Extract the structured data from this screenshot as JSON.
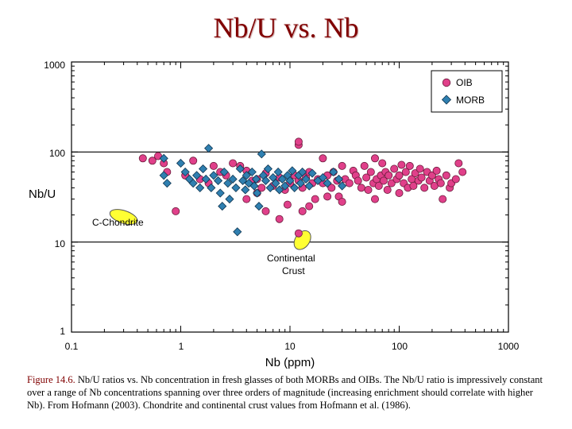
{
  "slide": {
    "title": "Nb/U vs. Nb"
  },
  "caption": {
    "figure_label": "Figure 14.6.",
    "text": " Nb/U ratios vs. Nb concentration in fresh glasses of both MORBs and OIBs. The Nb/U ratio is impressively constant over a range of Nb concentrations spanning over three orders of magnitude (increasing enrichment should correlate with higher Nb). From Hofmann (2003). Chondrite and continental crust values from Hofmann et al. (1986)."
  },
  "chart_data": {
    "type": "scatter",
    "xscale": "log",
    "yscale": "log",
    "xlim": [
      0.1,
      1000
    ],
    "ylim": [
      1,
      1000
    ],
    "xlabel": "Nb (ppm)",
    "ylabel": "Nb/U",
    "x_ticks": [
      0.1,
      1,
      10,
      100,
      1000
    ],
    "x_tick_labels": [
      "0.1",
      "1",
      "10",
      "100",
      "1000"
    ],
    "y_ticks": [
      1,
      10,
      100,
      1000
    ],
    "y_tick_labels": [
      "1",
      "10",
      "100",
      "1000"
    ],
    "reference_lines_y": [
      10,
      100
    ],
    "legend": {
      "position": "top-right",
      "entries": [
        "OIB",
        "MORB"
      ]
    },
    "colors": {
      "OIB": "#e0408a",
      "MORB": "#2f7fb0",
      "reference": "#ffff33"
    },
    "series": [
      {
        "name": "OIB",
        "marker": "circle",
        "points": [
          [
            0.45,
            85
          ],
          [
            0.55,
            80
          ],
          [
            0.62,
            90
          ],
          [
            0.7,
            75
          ],
          [
            0.75,
            60
          ],
          [
            0.9,
            22
          ],
          [
            1.1,
            55
          ],
          [
            1.3,
            80
          ],
          [
            1.5,
            50
          ],
          [
            1.8,
            45
          ],
          [
            2,
            70
          ],
          [
            2.3,
            60
          ],
          [
            2.6,
            55
          ],
          [
            3,
            75
          ],
          [
            3.5,
            70
          ],
          [
            4,
            62
          ],
          [
            4.5,
            48
          ],
          [
            5,
            50
          ],
          [
            5.5,
            40
          ],
          [
            6,
            58
          ],
          [
            7,
            42
          ],
          [
            8,
            52
          ],
          [
            9,
            38
          ],
          [
            10,
            45
          ],
          [
            11,
            55
          ],
          [
            12,
            48
          ],
          [
            12,
            120
          ],
          [
            12,
            130
          ],
          [
            13,
            40
          ],
          [
            14,
            52
          ],
          [
            15,
            60
          ],
          [
            16,
            45
          ],
          [
            17,
            30
          ],
          [
            18,
            50
          ],
          [
            20,
            45
          ],
          [
            20,
            85
          ],
          [
            22,
            55
          ],
          [
            24,
            40
          ],
          [
            25,
            60
          ],
          [
            27,
            48
          ],
          [
            28,
            32
          ],
          [
            30,
            70
          ],
          [
            32,
            50
          ],
          [
            35,
            45
          ],
          [
            38,
            62
          ],
          [
            40,
            55
          ],
          [
            42,
            48
          ],
          [
            45,
            40
          ],
          [
            48,
            70
          ],
          [
            50,
            52
          ],
          [
            52,
            38
          ],
          [
            55,
            60
          ],
          [
            58,
            45
          ],
          [
            60,
            85
          ],
          [
            62,
            50
          ],
          [
            65,
            42
          ],
          [
            68,
            55
          ],
          [
            70,
            75
          ],
          [
            72,
            48
          ],
          [
            75,
            60
          ],
          [
            78,
            38
          ],
          [
            80,
            55
          ],
          [
            85,
            45
          ],
          [
            90,
            65
          ],
          [
            95,
            50
          ],
          [
            100,
            55
          ],
          [
            100,
            35
          ],
          [
            105,
            72
          ],
          [
            110,
            45
          ],
          [
            115,
            60
          ],
          [
            120,
            40
          ],
          [
            125,
            70
          ],
          [
            130,
            50
          ],
          [
            135,
            42
          ],
          [
            140,
            58
          ],
          [
            150,
            48
          ],
          [
            155,
            65
          ],
          [
            160,
            52
          ],
          [
            170,
            40
          ],
          [
            180,
            60
          ],
          [
            190,
            48
          ],
          [
            200,
            55
          ],
          [
            210,
            42
          ],
          [
            220,
            62
          ],
          [
            230,
            50
          ],
          [
            240,
            45
          ],
          [
            250,
            30
          ],
          [
            270,
            55
          ],
          [
            290,
            40
          ],
          [
            300,
            45
          ],
          [
            330,
            50
          ],
          [
            350,
            75
          ],
          [
            380,
            60
          ],
          [
            12,
            12.5
          ],
          [
            6,
            22
          ],
          [
            8,
            18
          ],
          [
            9.5,
            26
          ],
          [
            13,
            22
          ],
          [
            15,
            25
          ],
          [
            22,
            32
          ],
          [
            30,
            28
          ],
          [
            60,
            30
          ],
          [
            5,
            35
          ],
          [
            4,
            30
          ]
        ]
      },
      {
        "name": "MORB",
        "marker": "diamond",
        "points": [
          [
            0.7,
            85
          ],
          [
            0.7,
            55
          ],
          [
            0.75,
            45
          ],
          [
            1,
            75
          ],
          [
            1.1,
            60
          ],
          [
            1.2,
            50
          ],
          [
            1.3,
            45
          ],
          [
            1.4,
            55
          ],
          [
            1.5,
            40
          ],
          [
            1.6,
            65
          ],
          [
            1.7,
            50
          ],
          [
            1.8,
            110
          ],
          [
            1.9,
            40
          ],
          [
            2,
            55
          ],
          [
            2.2,
            48
          ],
          [
            2.3,
            35
          ],
          [
            2.4,
            25
          ],
          [
            2.5,
            60
          ],
          [
            2.7,
            45
          ],
          [
            2.8,
            30
          ],
          [
            3,
            50
          ],
          [
            3.2,
            40
          ],
          [
            3.3,
            13
          ],
          [
            3.5,
            65
          ],
          [
            3.7,
            48
          ],
          [
            3.9,
            38
          ],
          [
            4,
            55
          ],
          [
            4.2,
            45
          ],
          [
            4.5,
            60
          ],
          [
            4.7,
            42
          ],
          [
            4.9,
            50
          ],
          [
            5,
            35
          ],
          [
            5.2,
            25
          ],
          [
            5.5,
            95
          ],
          [
            5.7,
            55
          ],
          [
            6,
            48
          ],
          [
            6.3,
            65
          ],
          [
            6.6,
            40
          ],
          [
            7,
            52
          ],
          [
            7.4,
            45
          ],
          [
            7.8,
            60
          ],
          [
            8,
            38
          ],
          [
            8.5,
            50
          ],
          [
            9,
            42
          ],
          [
            9.5,
            55
          ],
          [
            10,
            48
          ],
          [
            10.5,
            62
          ],
          [
            11,
            40
          ],
          [
            12,
            55
          ],
          [
            12.5,
            45
          ],
          [
            13,
            60
          ],
          [
            14,
            50
          ],
          [
            15,
            42
          ],
          [
            16,
            58
          ],
          [
            18,
            48
          ],
          [
            20,
            52
          ],
          [
            22,
            45
          ],
          [
            25,
            60
          ],
          [
            28,
            50
          ],
          [
            30,
            42
          ]
        ]
      }
    ],
    "annotations": [
      {
        "label": "C-Chondrite",
        "x": 0.3,
        "y": 19
      },
      {
        "label": "Continental Crust",
        "x": 13,
        "y": 10.5
      }
    ]
  }
}
